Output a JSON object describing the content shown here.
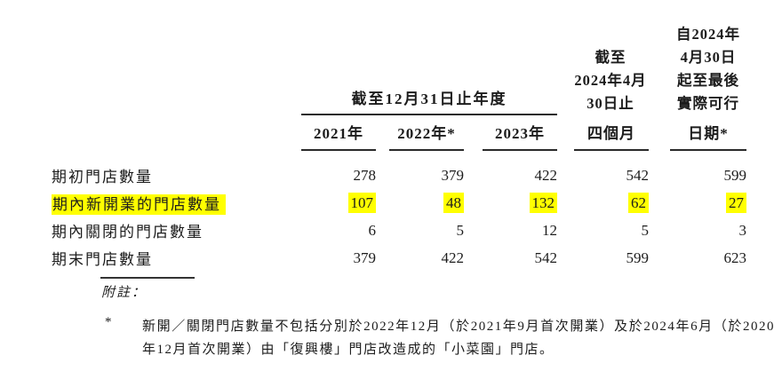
{
  "table": {
    "group_header": "截至12月31日止年度",
    "years": [
      "2021年",
      "2022年*",
      "2023年"
    ],
    "col_four_months_lines": [
      "截至",
      "2024年4月",
      "30日止",
      "四個月"
    ],
    "col_latest_date_lines": [
      "自2024年",
      "4月30日",
      "起至最後",
      "實際可行",
      "日期*"
    ],
    "rows": [
      {
        "label": "期初門店數量",
        "values": [
          "278",
          "379",
          "422",
          "542",
          "599"
        ],
        "highlight": false
      },
      {
        "label": "期內新開業的門店數量",
        "values": [
          "107",
          "48",
          "132",
          "62",
          "27"
        ],
        "highlight": true
      },
      {
        "label": "期內關閉的門店數量",
        "values": [
          "6",
          "5",
          "12",
          "5",
          "3"
        ],
        "highlight": false
      },
      {
        "label": "期末門店數量",
        "values": [
          "379",
          "422",
          "542",
          "599",
          "623"
        ],
        "highlight": false
      }
    ]
  },
  "notes": {
    "label": "附註：",
    "footnote_marker": "*",
    "footnote_text": "新開／關閉門店數量不包括分別於2022年12月（於2021年9月首次開業）及於2024年6月（於2020年12月首次開業）由「復興樓」門店改造成的「小菜園」門店。"
  },
  "colors": {
    "highlight": "#ffff00",
    "text": "#1c1c1c"
  }
}
